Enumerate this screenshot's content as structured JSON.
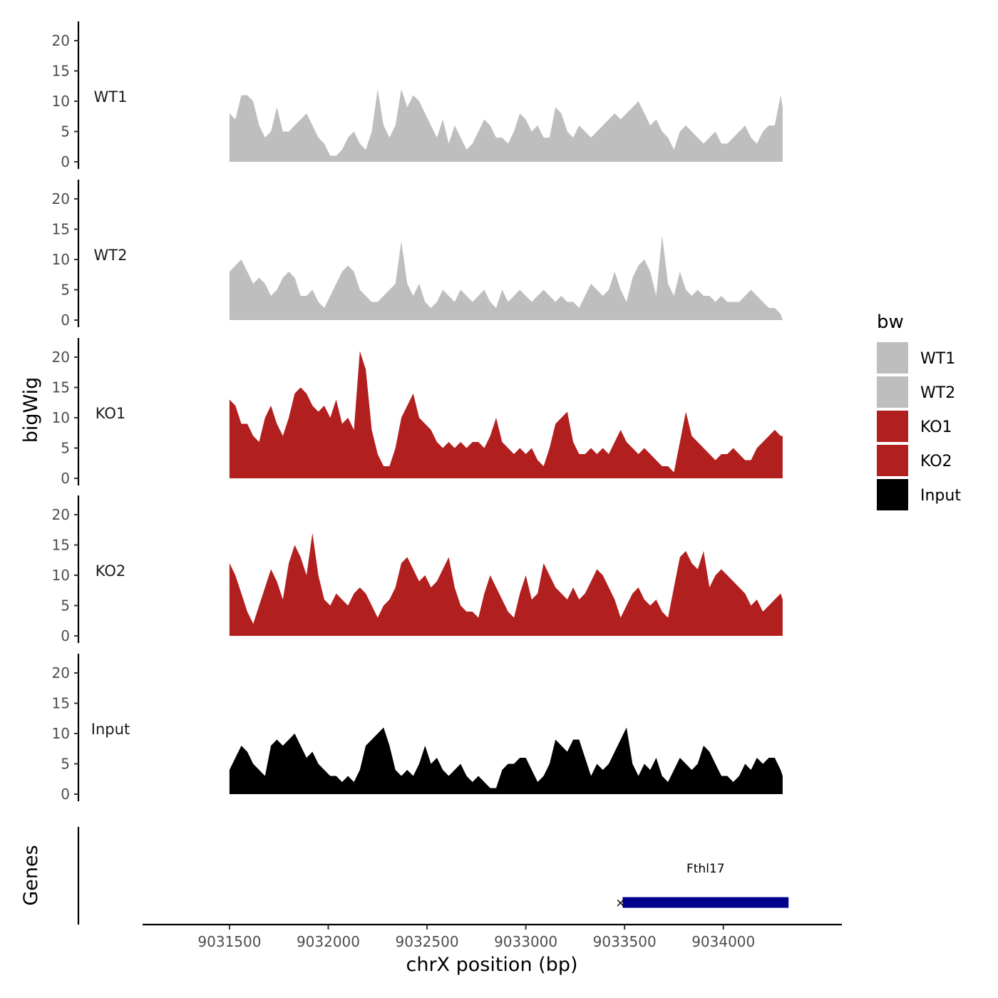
{
  "chart_data": {
    "type": "area",
    "ylabel": "bigWig",
    "xlabel": "chrX position (bp)",
    "xlim": [
      9031060,
      9034600
    ],
    "ylim": [
      0,
      22
    ],
    "y_ticks": [
      "0",
      "5",
      "10",
      "15",
      "20"
    ],
    "x_ticks": [
      9031500,
      9032000,
      9032500,
      9033000,
      9033500,
      9034000
    ],
    "x_tick_labels": [
      "9031500",
      "9032000",
      "9032500",
      "9033000",
      "9033500",
      "9034000"
    ],
    "x": [
      9031500,
      9031530,
      9031560,
      9031590,
      9031620,
      9031650,
      9031680,
      9031710,
      9031740,
      9031770,
      9031800,
      9031830,
      9031860,
      9031890,
      9031920,
      9031950,
      9031980,
      9032010,
      9032040,
      9032070,
      9032100,
      9032130,
      9032160,
      9032190,
      9032220,
      9032250,
      9032280,
      9032310,
      9032340,
      9032370,
      9032400,
      9032430,
      9032460,
      9032490,
      9032520,
      9032550,
      9032580,
      9032610,
      9032640,
      9032670,
      9032700,
      9032730,
      9032760,
      9032790,
      9032820,
      9032850,
      9032880,
      9032910,
      9032940,
      9032970,
      9033000,
      9033030,
      9033060,
      9033090,
      9033120,
      9033150,
      9033180,
      9033210,
      9033240,
      9033270,
      9033300,
      9033330,
      9033360,
      9033390,
      9033420,
      9033450,
      9033480,
      9033510,
      9033540,
      9033570,
      9033600,
      9033630,
      9033660,
      9033690,
      9033720,
      9033750,
      9033780,
      9033810,
      9033840,
      9033870,
      9033900,
      9033930,
      9033960,
      9033990,
      9034020,
      9034050,
      9034080,
      9034110,
      9034140,
      9034170,
      9034200,
      9034230,
      9034260,
      9034290,
      9034300
    ],
    "series": [
      {
        "name": "WT1",
        "color": "#bebebe",
        "values": [
          8,
          7,
          11,
          11,
          10,
          6,
          4,
          5,
          9,
          5,
          5,
          6,
          7,
          8,
          6,
          4,
          3,
          1,
          1,
          2,
          4,
          5,
          3,
          2,
          5,
          12,
          6,
          4,
          6,
          12,
          9,
          11,
          10,
          8,
          6,
          4,
          7,
          3,
          6,
          4,
          2,
          3,
          5,
          7,
          6,
          4,
          4,
          3,
          5,
          8,
          7,
          5,
          6,
          4,
          4,
          9,
          8,
          5,
          4,
          6,
          5,
          4,
          5,
          6,
          7,
          8,
          7,
          8,
          9,
          10,
          8,
          6,
          7,
          5,
          4,
          2,
          5,
          6,
          5,
          4,
          3,
          4,
          5,
          3,
          3,
          4,
          5,
          6,
          4,
          3,
          5,
          6,
          6,
          11,
          9
        ]
      },
      {
        "name": "WT2",
        "color": "#bebebe",
        "values": [
          8,
          9,
          10,
          8,
          6,
          7,
          6,
          4,
          5,
          7,
          8,
          7,
          4,
          4,
          5,
          3,
          2,
          4,
          6,
          8,
          9,
          8,
          5,
          4,
          3,
          3,
          4,
          5,
          6,
          13,
          6,
          4,
          6,
          3,
          2,
          3,
          5,
          4,
          3,
          5,
          4,
          3,
          4,
          5,
          3,
          2,
          5,
          3,
          4,
          5,
          4,
          3,
          4,
          5,
          4,
          3,
          4,
          3,
          3,
          2,
          4,
          6,
          5,
          4,
          5,
          8,
          5,
          3,
          7,
          9,
          10,
          8,
          4,
          14,
          6,
          4,
          8,
          5,
          4,
          5,
          4,
          4,
          3,
          4,
          3,
          3,
          3,
          4,
          5,
          4,
          3,
          2,
          2,
          1,
          0
        ]
      },
      {
        "name": "KO1",
        "color": "#b21f1f",
        "values": [
          13,
          12,
          9,
          9,
          7,
          6,
          10,
          12,
          9,
          7,
          10,
          14,
          15,
          14,
          12,
          11,
          12,
          10,
          13,
          9,
          10,
          8,
          21,
          18,
          8,
          4,
          2,
          2,
          5,
          10,
          12,
          14,
          10,
          9,
          8,
          6,
          5,
          6,
          5,
          6,
          5,
          6,
          6,
          5,
          7,
          10,
          6,
          5,
          4,
          5,
          4,
          5,
          3,
          2,
          5,
          9,
          10,
          11,
          6,
          4,
          4,
          5,
          4,
          5,
          4,
          6,
          8,
          6,
          5,
          4,
          5,
          4,
          3,
          2,
          2,
          1,
          6,
          11,
          7,
          6,
          5,
          4,
          3,
          4,
          4,
          5,
          4,
          3,
          3,
          5,
          6,
          7,
          8,
          7,
          7
        ]
      },
      {
        "name": "KO2",
        "color": "#b21f1f",
        "values": [
          12,
          10,
          7,
          4,
          2,
          5,
          8,
          11,
          9,
          6,
          12,
          15,
          13,
          10,
          17,
          10,
          6,
          5,
          7,
          6,
          5,
          7,
          8,
          7,
          5,
          3,
          5,
          6,
          8,
          12,
          13,
          11,
          9,
          10,
          8,
          9,
          11,
          13,
          8,
          5,
          4,
          4,
          3,
          7,
          10,
          8,
          6,
          4,
          3,
          7,
          10,
          6,
          7,
          12,
          10,
          8,
          7,
          6,
          8,
          6,
          7,
          9,
          11,
          10,
          8,
          6,
          3,
          5,
          7,
          8,
          6,
          5,
          6,
          4,
          3,
          8,
          13,
          14,
          12,
          11,
          14,
          8,
          10,
          11,
          10,
          9,
          8,
          7,
          5,
          6,
          4,
          5,
          6,
          7,
          6
        ]
      },
      {
        "name": "Input",
        "color": "#000000",
        "values": [
          4,
          6,
          8,
          7,
          5,
          4,
          3,
          8,
          9,
          8,
          9,
          10,
          8,
          6,
          7,
          5,
          4,
          3,
          3,
          2,
          3,
          2,
          4,
          8,
          9,
          10,
          11,
          8,
          4,
          3,
          4,
          3,
          5,
          8,
          5,
          6,
          4,
          3,
          4,
          5,
          3,
          2,
          3,
          2,
          1,
          1,
          4,
          5,
          5,
          6,
          6,
          4,
          2,
          3,
          5,
          9,
          8,
          7,
          9,
          9,
          6,
          3,
          5,
          4,
          5,
          7,
          9,
          11,
          5,
          3,
          5,
          4,
          6,
          3,
          2,
          4,
          6,
          5,
          4,
          5,
          8,
          7,
          5,
          3,
          3,
          2,
          3,
          5,
          4,
          6,
          5,
          6,
          6,
          4,
          3
        ]
      }
    ],
    "legend": {
      "title": "bw",
      "position": "right"
    },
    "genes_track": {
      "label": "Genes",
      "genes": [
        {
          "name": "Fthl17",
          "start": 9033490,
          "end": 9034330,
          "color": "#00008b"
        }
      ]
    }
  }
}
